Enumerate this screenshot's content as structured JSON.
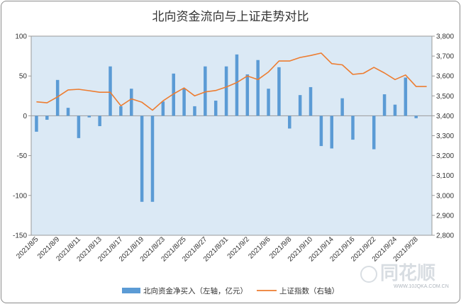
{
  "chart_data": {
    "type": "bar+line",
    "title": "北向资金流向与上证走势对比",
    "categories": [
      "2021/8/5",
      "2021/8/6",
      "2021/8/9",
      "2021/8/10",
      "2021/8/11",
      "2021/8/12",
      "2021/8/13",
      "2021/8/16",
      "2021/8/17",
      "2021/8/18",
      "2021/8/19",
      "2021/8/20",
      "2021/8/23",
      "2021/8/24",
      "2021/8/25",
      "2021/8/26",
      "2021/8/27",
      "2021/8/30",
      "2021/8/31",
      "2021/9/1",
      "2021/9/2",
      "2021/9/3",
      "2021/9/6",
      "2021/9/7",
      "2021/9/8",
      "2021/9/9",
      "2021/9/10",
      "2021/9/13",
      "2021/9/14",
      "2021/9/15",
      "2021/9/16",
      "2021/9/17",
      "2021/9/22",
      "2021/9/23",
      "2021/9/24",
      "2021/9/27",
      "2021/9/28",
      "2021/9/29"
    ],
    "x_tick_labels": [
      "2021/8/5",
      "2021/8/9",
      "2021/8/11",
      "2021/8/13",
      "2021/8/17",
      "2021/8/19",
      "2021/8/23",
      "2021/8/25",
      "2021/8/27",
      "2021/8/31",
      "2021/9/2",
      "2021/9/6",
      "2021/9/8",
      "2021/9/10",
      "2021/9/14",
      "2021/9/16",
      "2021/9/22",
      "2021/9/24",
      "2021/9/28"
    ],
    "series": [
      {
        "name": "北向资金净买入（左轴，亿元）",
        "type": "bar",
        "axis": "left",
        "color": "#5b9bd5",
        "values": [
          -20,
          -5,
          45,
          10,
          -28,
          -2,
          -13,
          62,
          12,
          34,
          -108,
          -108,
          18,
          53,
          34,
          12,
          62,
          19,
          62,
          77,
          52,
          70,
          34,
          61,
          -16,
          26,
          36,
          -38,
          -41,
          22,
          -30,
          0,
          -42,
          27,
          14,
          48,
          -3,
          0
        ]
      },
      {
        "name": "上证指数（右轴）",
        "type": "line",
        "axis": "right",
        "color": "#ed7d31",
        "values": [
          3470,
          3465,
          3495,
          3530,
          3533,
          3526,
          3518,
          3518,
          3450,
          3485,
          3468,
          3428,
          3475,
          3510,
          3540,
          3500,
          3520,
          3527,
          3545,
          3567,
          3600,
          3582,
          3620,
          3675,
          3675,
          3693,
          3703,
          3715,
          3662,
          3656,
          3608,
          3613,
          3643,
          3615,
          3582,
          3605,
          3547,
          3547
        ]
      }
    ],
    "y_left": {
      "min": -150,
      "max": 100,
      "ticks": [
        "100",
        "50",
        "0",
        "-50",
        "-100",
        "-150"
      ]
    },
    "y_right": {
      "min": 2800,
      "max": 3800,
      "ticks": [
        "3,800",
        "3,700",
        "3,600",
        "3,500",
        "3,400",
        "3,300",
        "3,200",
        "3,100",
        "3,000",
        "2,900",
        "2,800"
      ]
    },
    "grid": false,
    "legend_position": "bottom",
    "plot_background": "#dbe9f5",
    "watermark": {
      "brand": "同花顺",
      "url": "WWW.10JQKA.COM.CN"
    }
  }
}
